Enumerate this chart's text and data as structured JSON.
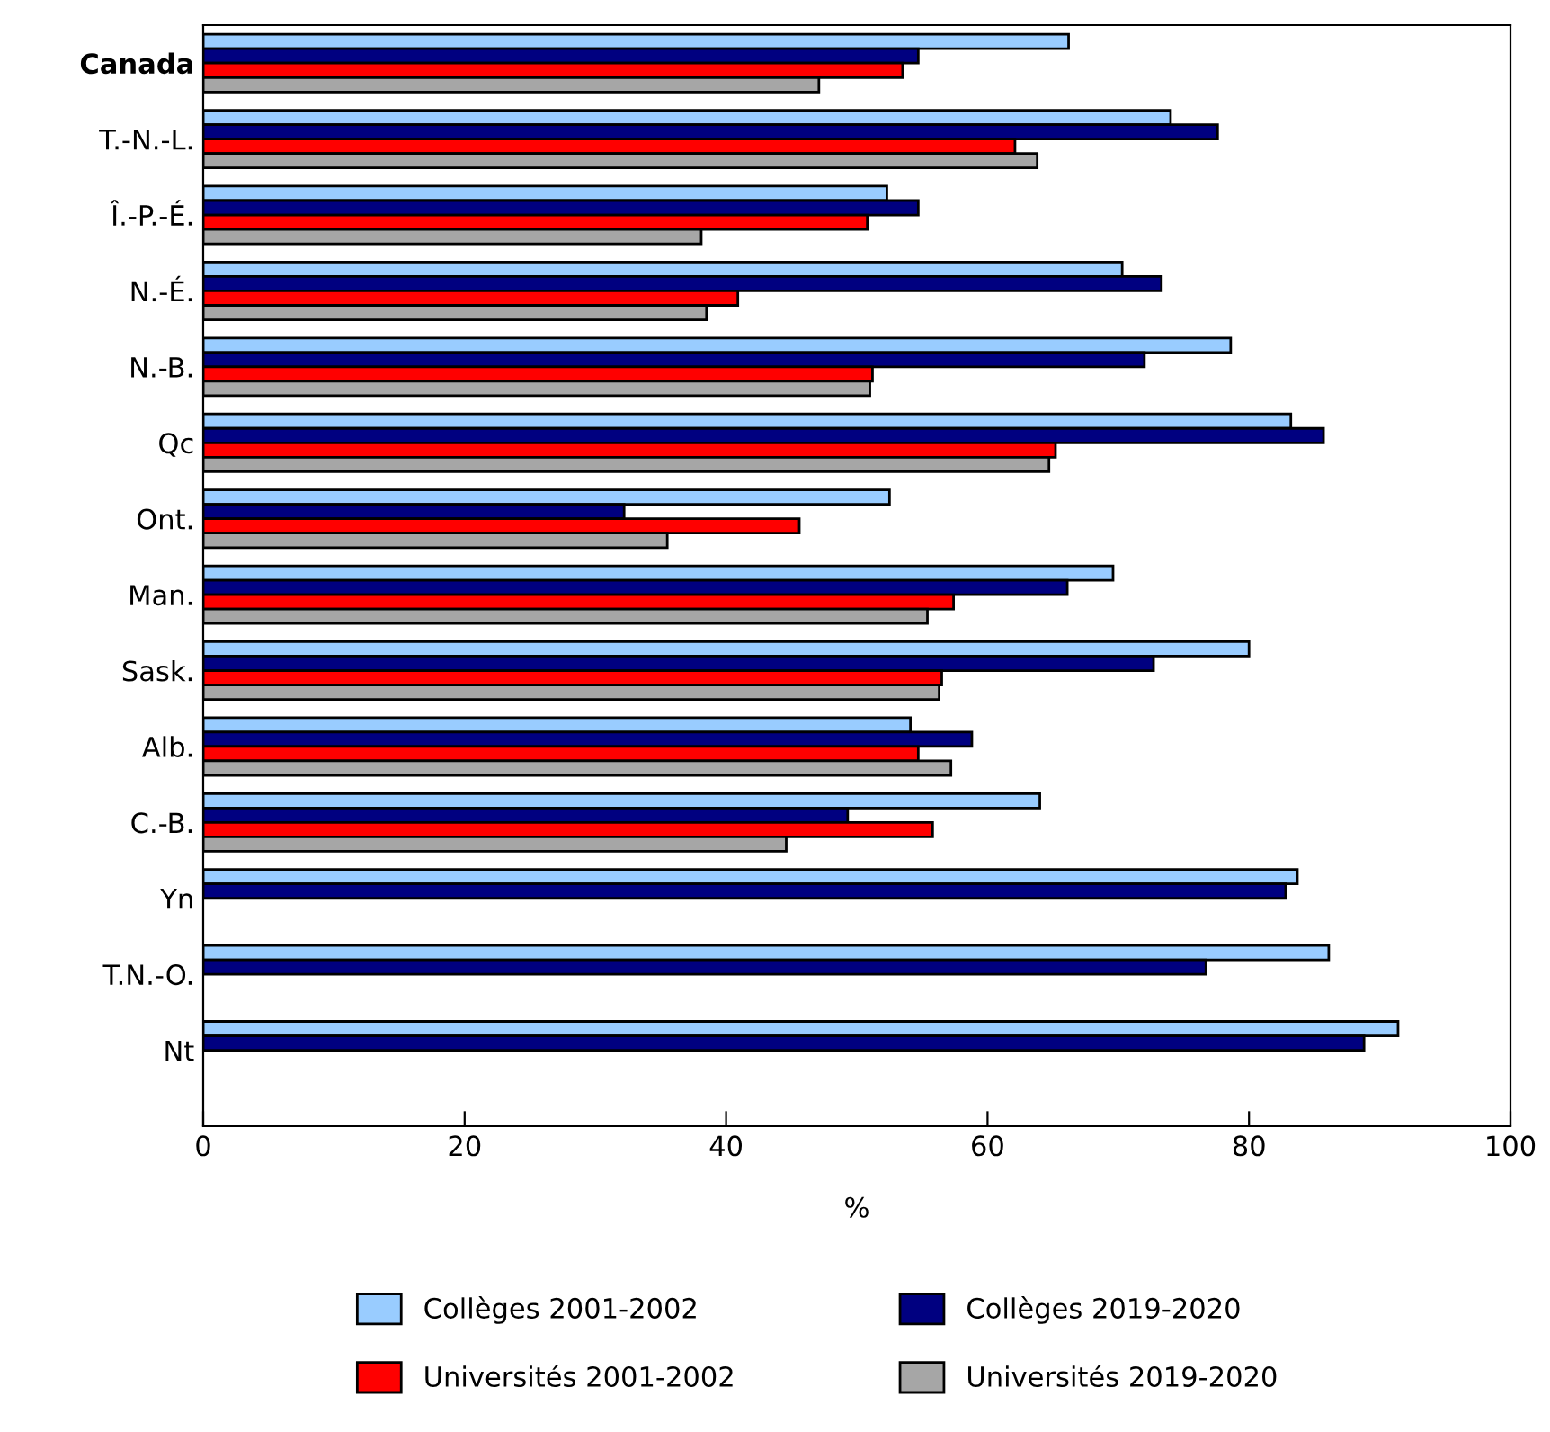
{
  "chart_data": {
    "type": "bar",
    "orientation": "horizontal",
    "xlabel": "%",
    "categories": [
      "Canada",
      "T.-N.-L.",
      "Î.-P.-É.",
      "N.-É.",
      "N.-B.",
      "Qc",
      "Ont.",
      "Man.",
      "Sask.",
      "Alb.",
      "C.-B.",
      "Yn",
      "T.N.-O.",
      "Nt"
    ],
    "series": [
      {
        "name": "Collèges 2001-2002",
        "color": "#99ccff",
        "values": [
          66.2,
          74.0,
          52.3,
          70.3,
          78.6,
          83.2,
          52.5,
          69.6,
          80.0,
          54.1,
          64.0,
          83.7,
          86.1,
          91.4
        ]
      },
      {
        "name": "Collèges 2019-2020",
        "color": "#000080",
        "values": [
          54.7,
          77.6,
          54.7,
          73.3,
          72.0,
          85.7,
          32.2,
          66.1,
          72.7,
          58.8,
          49.3,
          82.8,
          76.7,
          88.8
        ]
      },
      {
        "name": "Universités 2001-2002",
        "color": "#ff0000",
        "values": [
          53.5,
          62.1,
          50.8,
          40.9,
          51.2,
          65.2,
          45.6,
          57.4,
          56.5,
          54.7,
          55.8,
          null,
          null,
          null
        ]
      },
      {
        "name": "Universités 2019-2020",
        "color": "#a6a6a6",
        "values": [
          47.1,
          63.8,
          38.1,
          38.5,
          51.0,
          64.7,
          35.5,
          55.4,
          56.3,
          57.2,
          44.6,
          null,
          null,
          null
        ]
      }
    ],
    "xlim": [
      0,
      100
    ],
    "xticks": [
      0,
      20,
      40,
      60,
      80,
      100
    ],
    "grid": false,
    "legend": "bottom"
  }
}
